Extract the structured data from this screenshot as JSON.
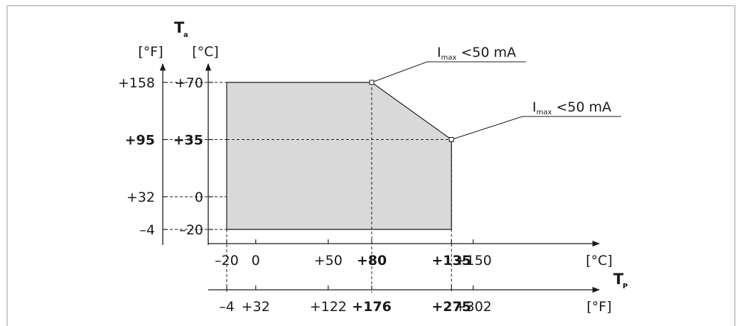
{
  "chart_data": {
    "type": "area",
    "y_axis": {
      "name": "T",
      "subscript": "a",
      "unit_f": "[°F]",
      "unit_c": "[°C]",
      "ticks": [
        {
          "c": -20,
          "c_label": "–20",
          "f_label": "–4",
          "bold": false
        },
        {
          "c": 0,
          "c_label": "0",
          "f_label": "+32",
          "bold": false
        },
        {
          "c": 35,
          "c_label": "+35",
          "f_label": "+95",
          "bold": true
        },
        {
          "c": 70,
          "c_label": "+70",
          "f_label": "+158",
          "bold": false
        }
      ]
    },
    "x_axis": {
      "name": "T",
      "subscript": "P",
      "unit_c": "[°C]",
      "unit_f": "[°F]",
      "ticks_c": [
        {
          "v": -20,
          "label": "–20",
          "bold": false
        },
        {
          "v": 0,
          "label": "0",
          "bold": false
        },
        {
          "v": 50,
          "label": "+50",
          "bold": false
        },
        {
          "v": 80,
          "label": "+80",
          "bold": true
        },
        {
          "v": 135,
          "label": "+135",
          "bold": true
        },
        {
          "v": 150,
          "label": "+150",
          "bold": false
        }
      ],
      "ticks_f": [
        {
          "v": -20,
          "label": "–4",
          "bold": false
        },
        {
          "v": 0,
          "label": "+32",
          "bold": false
        },
        {
          "v": 50,
          "label": "+122",
          "bold": false
        },
        {
          "v": 80,
          "label": "+176",
          "bold": true
        },
        {
          "v": 135,
          "label": "+275",
          "bold": true
        },
        {
          "v": 150,
          "label": "+302",
          "bold": false
        }
      ]
    },
    "region": [
      {
        "x": -20,
        "y": -20
      },
      {
        "x": -20,
        "y": 70
      },
      {
        "x": 80,
        "y": 70
      },
      {
        "x": 135,
        "y": 35
      },
      {
        "x": 135,
        "y": -20
      }
    ],
    "annotations": [
      {
        "x": 80,
        "y": 70,
        "symbol": "I",
        "subscript": "max",
        "text": " <50 mA"
      },
      {
        "x": 135,
        "y": 35,
        "symbol": "I",
        "subscript": "max",
        "text": " <50 mA"
      }
    ]
  },
  "colors": {
    "fill": "#d9d9d9",
    "stroke": "#1a1a1a",
    "frame": "#999999"
  }
}
